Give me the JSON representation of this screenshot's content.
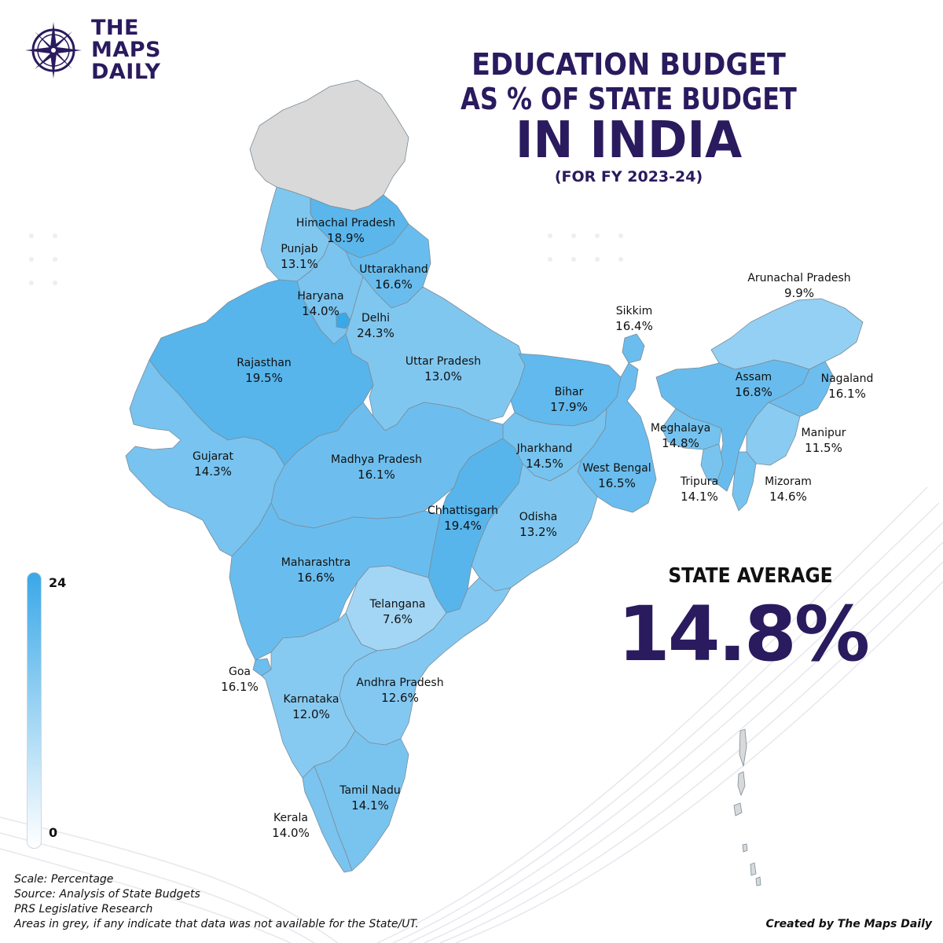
{
  "brand": {
    "name_line1": "THE",
    "name_line2": "MAPS",
    "name_line3": "DAILY"
  },
  "title": {
    "line1": "EDUCATION BUDGET",
    "line2": "AS % OF STATE BUDGET",
    "line3": "IN INDIA",
    "line4": "(FOR FY 2023-24)"
  },
  "average": {
    "label": "STATE AVERAGE",
    "value": "14.8%"
  },
  "legend": {
    "max_label": "24",
    "min_label": "0",
    "max": 24,
    "min": 0,
    "color_high": "#3aa8e8",
    "color_low": "#ffffff"
  },
  "notes": {
    "scale": "Scale: Percentage",
    "source": "Source: Analysis of State Budgets",
    "org": "PRS Legislative Research",
    "grey": "Areas in grey, if any indicate that data was not available for the State/UT."
  },
  "credit": "Created by The Maps Daily",
  "colors": {
    "brand": "#2a1a5e",
    "no_data": "#d9d9d9",
    "border": "#7a8c99"
  },
  "chart_data": {
    "type": "choropleth",
    "title": "Education budget as % of state budget in India (FY 2023-24)",
    "unit": "%",
    "range": [
      0,
      24
    ],
    "regions": [
      {
        "id": "himachal",
        "name": "Himachal Pradesh",
        "label": "18.9%",
        "value": 18.9
      },
      {
        "id": "punjab",
        "name": "Punjab",
        "label": "13.1%",
        "value": 13.1
      },
      {
        "id": "uttarakhand",
        "name": "Uttarakhand",
        "label": "16.6%",
        "value": 16.6
      },
      {
        "id": "haryana",
        "name": "Haryana",
        "label": "14.0%",
        "value": 14.0
      },
      {
        "id": "delhi",
        "name": "Delhi",
        "label": "24.3%",
        "value": 24.3
      },
      {
        "id": "rajasthan",
        "name": "Rajasthan",
        "label": "19.5%",
        "value": 19.5
      },
      {
        "id": "uttarpradesh",
        "name": "Uttar Pradesh",
        "label": "13.0%",
        "value": 13.0
      },
      {
        "id": "bihar",
        "name": "Bihar",
        "label": "17.9%",
        "value": 17.9
      },
      {
        "id": "sikkim",
        "name": "Sikkim",
        "label": "16.4%",
        "value": 16.4
      },
      {
        "id": "arunachal",
        "name": "Arunachal Pradesh",
        "label": "9.9%",
        "value": 9.9
      },
      {
        "id": "assam",
        "name": "Assam",
        "label": "16.8%",
        "value": 16.8
      },
      {
        "id": "nagaland",
        "name": "Nagaland",
        "label": "16.1%",
        "value": 16.1
      },
      {
        "id": "meghalaya",
        "name": "Meghalaya",
        "label": "14.8%",
        "value": 14.8
      },
      {
        "id": "manipur",
        "name": "Manipur",
        "label": "11.5%",
        "value": 11.5
      },
      {
        "id": "tripura",
        "name": "Tripura",
        "label": "14.1%",
        "value": 14.1
      },
      {
        "id": "mizoram",
        "name": "Mizoram",
        "label": "14.6%",
        "value": 14.6
      },
      {
        "id": "gujarat",
        "name": "Gujarat",
        "label": "14.3%",
        "value": 14.3
      },
      {
        "id": "madhyapradesh",
        "name": "Madhya Pradesh",
        "label": "16.1%",
        "value": 16.1
      },
      {
        "id": "jharkhand",
        "name": "Jharkhand",
        "label": "14.5%",
        "value": 14.5
      },
      {
        "id": "westbengal",
        "name": "West Bengal",
        "label": "16.5%",
        "value": 16.5
      },
      {
        "id": "chhattisgarh",
        "name": "Chhattisgarh",
        "label": "19.4%",
        "value": 19.4
      },
      {
        "id": "odisha",
        "name": "Odisha",
        "label": "13.2%",
        "value": 13.2
      },
      {
        "id": "maharashtra",
        "name": "Maharashtra",
        "label": "16.6%",
        "value": 16.6
      },
      {
        "id": "telangana",
        "name": "Telangana",
        "label": "7.6%",
        "value": 7.6
      },
      {
        "id": "goa",
        "name": "Goa",
        "label": "16.1%",
        "value": 16.1
      },
      {
        "id": "andhra",
        "name": "Andhra Pradesh",
        "label": "12.6%",
        "value": 12.6
      },
      {
        "id": "karnataka",
        "name": "Karnataka",
        "label": "12.0%",
        "value": 12.0
      },
      {
        "id": "tamilnadu",
        "name": "Tamil Nadu",
        "label": "14.1%",
        "value": 14.1
      },
      {
        "id": "kerala",
        "name": "Kerala",
        "label": "14.0%",
        "value": 14.0
      }
    ]
  }
}
